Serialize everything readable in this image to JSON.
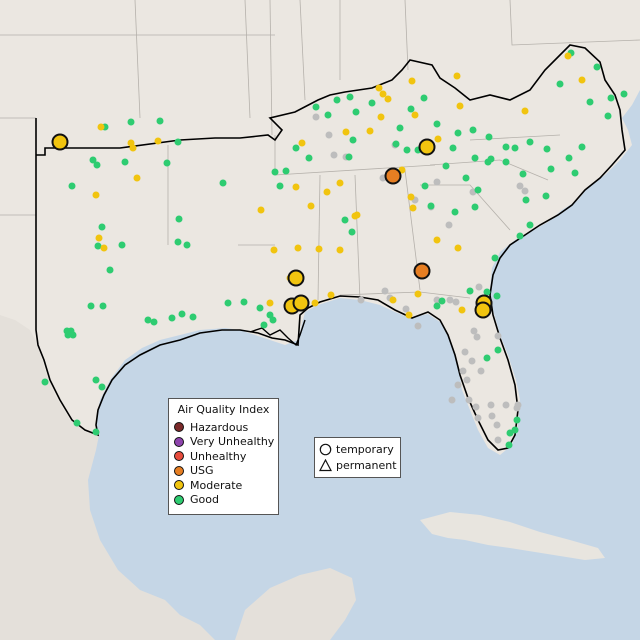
{
  "colors": {
    "ocean": "#c5d6e6",
    "land": "#ebe7e1",
    "land_mexico": "#e4e0da",
    "cuba": "#e8e5df",
    "state_line": "#b5b1ab",
    "region_outline": "#000000",
    "Hazardous": "#7b2a2a",
    "Very Unhealthy": "#8e44ad",
    "Unhealthy": "#e74c3c",
    "USG": "#e67e22",
    "Moderate": "#f1c40f",
    "Good": "#2ecc71",
    "no_data": "#bdbdbd"
  },
  "legend": {
    "title": "Air Quality Index",
    "items": [
      {
        "label": "Hazardous",
        "color_key": "Hazardous"
      },
      {
        "label": "Very Unhealthy",
        "color_key": "Very Unhealthy"
      },
      {
        "label": "Unhealthy",
        "color_key": "Unhealthy"
      },
      {
        "label": "USG",
        "color_key": "USG"
      },
      {
        "label": "Moderate",
        "color_key": "Moderate"
      },
      {
        "label": "Good",
        "color_key": "Good"
      }
    ]
  },
  "type_legend": {
    "temporary": "temporary",
    "permanent": "permanent",
    "temporary_icon": "circle-icon",
    "permanent_icon": "triangle-icon"
  }
}
